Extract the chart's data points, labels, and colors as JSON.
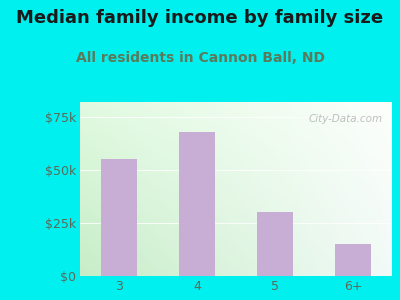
{
  "title": "Median family income by family size",
  "subtitle": "All residents in Cannon Ball, ND",
  "categories": [
    "3",
    "4",
    "5",
    "6+"
  ],
  "values": [
    55000,
    68000,
    30000,
    15000
  ],
  "bar_color": "#c8aed4",
  "background_outer": "#00f0f0",
  "title_color": "#1a1a1a",
  "subtitle_color": "#5a7a5a",
  "tick_label_color": "#5a6a5a",
  "ytick_labels": [
    "$0",
    "$25k",
    "$50k",
    "$75k"
  ],
  "ytick_values": [
    0,
    25000,
    50000,
    75000
  ],
  "ylim": [
    0,
    82000
  ],
  "title_fontsize": 13,
  "subtitle_fontsize": 10,
  "tick_fontsize": 9,
  "watermark": "City-Data.com"
}
